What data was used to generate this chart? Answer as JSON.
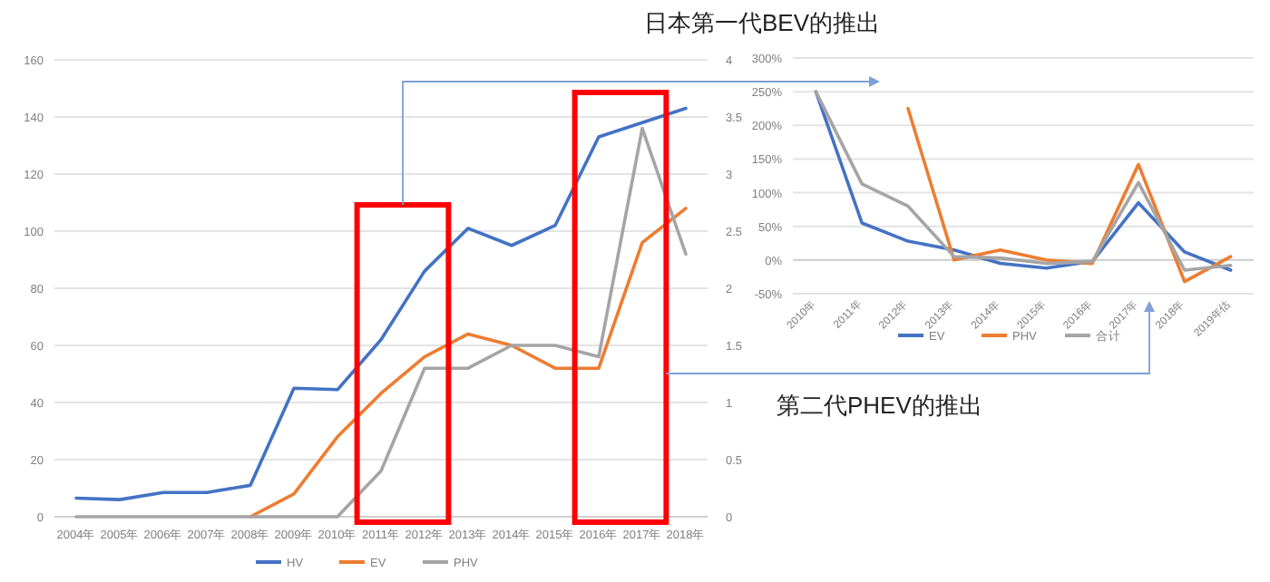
{
  "chart_data": [
    {
      "type": "line",
      "categories": [
        "2004年",
        "2005年",
        "2006年",
        "2007年",
        "2008年",
        "2009年",
        "2010年",
        "2011年",
        "2012年",
        "2013年",
        "2014年",
        "2015年",
        "2016年",
        "2017年",
        "2018年"
      ],
      "series": [
        {
          "name": "HV",
          "color": "#4472c4",
          "values": [
            6.5,
            6,
            8.5,
            8.5,
            11,
            45,
            44.5,
            62,
            86,
            101,
            95,
            102,
            133,
            138,
            143
          ]
        },
        {
          "name": "EV",
          "color": "#ed7d31",
          "axis": "y2",
          "values": [
            null,
            null,
            null,
            null,
            0,
            0.2,
            0.7,
            1.08,
            1.4,
            1.6,
            1.5,
            1.3,
            1.3,
            2.4,
            2.7
          ]
        },
        {
          "name": "PHV",
          "color": "#a5a5a5",
          "axis": "y2",
          "values": [
            0,
            0,
            0,
            0,
            0,
            0,
            0,
            0.4,
            1.3,
            1.3,
            1.5,
            1.5,
            1.4,
            3.4,
            2.3
          ]
        }
      ],
      "ylim": [
        0,
        160
      ],
      "yticks": [
        0,
        20,
        40,
        60,
        80,
        100,
        120,
        140,
        160
      ],
      "y2lim": [
        0,
        4
      ],
      "y2ticks": [
        0,
        0.5,
        1,
        1.5,
        2,
        2.5,
        3,
        3.5,
        4
      ],
      "grid": "y",
      "legend": "bottom",
      "marker": "none",
      "annotations": [
        "日本第一代BEV的推出",
        "第二代PHEV的推出"
      ]
    },
    {
      "type": "line",
      "categories": [
        "2010年",
        "2011年",
        "2012年",
        "2013年",
        "2014年",
        "2015年",
        "2016年",
        "2017年",
        "2018年",
        "2019年估"
      ],
      "series": [
        {
          "name": "EV",
          "color": "#4472c4",
          "values": [
            250,
            55,
            28,
            15,
            -5,
            -12,
            -2,
            85,
            12,
            -15
          ]
        },
        {
          "name": "PHV",
          "color": "#ed7d31",
          "values": [
            null,
            null,
            225,
            0,
            15,
            0,
            -5,
            142,
            -32,
            5
          ]
        },
        {
          "name": "合计",
          "color": "#a5a5a5",
          "values": [
            250,
            113,
            80,
            5,
            3,
            -5,
            -2,
            115,
            -15,
            -8
          ]
        }
      ],
      "ylim": [
        -50,
        300
      ],
      "yticks": [
        {
          "value": -50,
          "label": "-50%"
        },
        {
          "value": 0,
          "label": "0%"
        },
        {
          "value": 50,
          "label": "50%"
        },
        {
          "value": 100,
          "label": "100%"
        },
        {
          "value": 150,
          "label": "150%"
        },
        {
          "value": 200,
          "label": "200%"
        },
        {
          "value": 250,
          "label": "250%"
        },
        {
          "value": 300,
          "label": "300%"
        }
      ],
      "grid": "y",
      "legend": "bottom",
      "marker": "none"
    }
  ]
}
